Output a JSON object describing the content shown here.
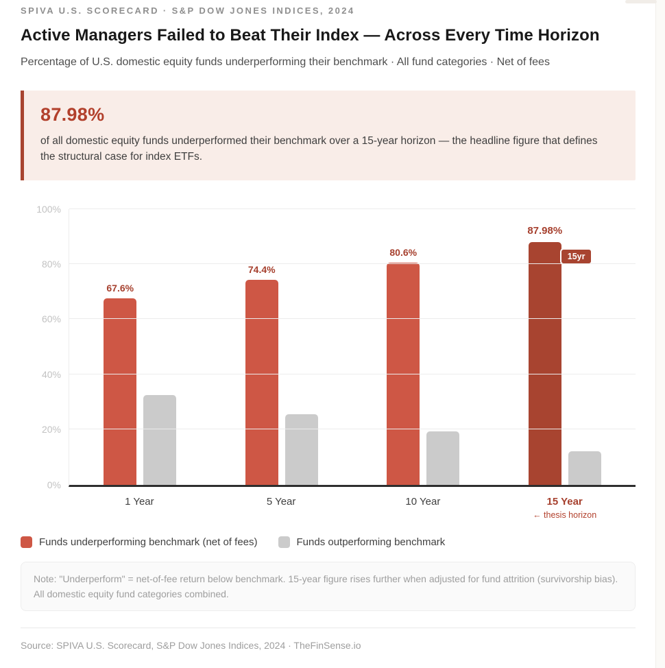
{
  "page": {
    "eyebrow": "SPIVA U.S. SCORECARD · S&P DOW JONES INDICES, 2024",
    "title": "Active Managers Failed to Beat Their Index — Across Every Time Horizon",
    "subtitle": "Percentage of U.S. domestic equity funds underperforming their benchmark · All fund categories · Net of fees"
  },
  "callout": {
    "stat": "87.98%",
    "text": "of all domestic equity funds underperformed their benchmark over a 15-year horizon — the headline figure that defines the structural case for index ETFs."
  },
  "chart_data": {
    "type": "bar",
    "categories": [
      "1 Year",
      "5 Year",
      "10 Year",
      "15 Year"
    ],
    "series": [
      {
        "name": "Funds underperforming benchmark (net of fees)",
        "values": [
          67.6,
          74.4,
          80.6,
          87.98
        ],
        "value_labels": [
          "67.6%",
          "74.4%",
          "80.6%",
          "87.98%"
        ],
        "color": "#CE5745"
      },
      {
        "name": "Funds outperforming benchmark",
        "values": [
          32.4,
          25.6,
          19.4,
          12.02
        ],
        "color": "#CBCBCB"
      }
    ],
    "highlight": {
      "index": 3,
      "color": "#A84430",
      "badge": "15yr",
      "category_sub_label": "← thesis horizon"
    },
    "y_ticks": [
      "0%",
      "20%",
      "40%",
      "60%",
      "80%",
      "100%"
    ],
    "ylim": [
      0,
      100
    ],
    "grid": true,
    "legend_position": "bottom",
    "xlabel": "",
    "ylabel": ""
  },
  "legend": {
    "items": [
      {
        "label": "Funds underperforming benchmark (net of fees)",
        "color": "#CE5745"
      },
      {
        "label": "Funds outperforming benchmark",
        "color": "#CBCBCB"
      }
    ]
  },
  "note": "Note: \"Underperform\" = net-of-fee return below benchmark. 15-year figure rises further when adjusted for fund attrition (survivorship bias). All domestic equity fund categories combined.",
  "footer": "Source: SPIVA U.S. Scorecard, S&P Dow Jones Indices, 2024 · TheFinSense.io",
  "colors": {
    "underperform": "#CE5745",
    "underperform_highlight": "#A84430",
    "outperform": "#CBCBCB",
    "callout_bg": "#F9EDE8",
    "callout_accent": "#A84430",
    "value_label_red": "#A6402E"
  }
}
